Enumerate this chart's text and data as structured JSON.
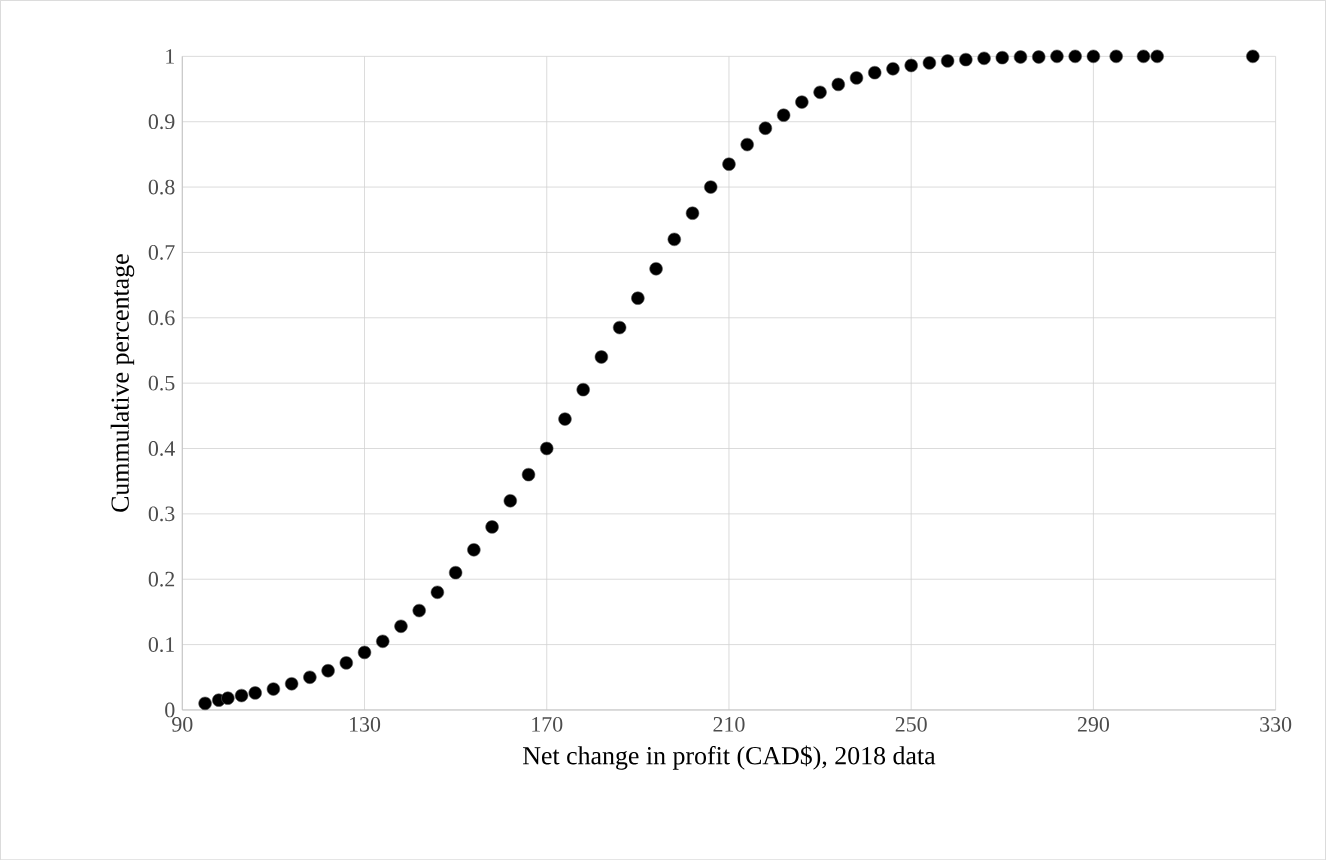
{
  "chart_data": {
    "type": "scatter",
    "xlabel": "Net change in profit (CAD$), 2018 data",
    "ylabel": "Cummulative percentage",
    "xlim": [
      90,
      330
    ],
    "xticks": [
      90,
      130,
      170,
      210,
      250,
      290,
      330
    ],
    "ylim": [
      0,
      1
    ],
    "yticks": [
      0,
      0.1,
      0.2,
      0.3,
      0.4,
      0.5,
      0.6,
      0.7,
      0.8,
      0.9,
      1
    ],
    "grid": true,
    "marker": "circle",
    "series": [
      {
        "color": "#000000",
        "x": [
          95,
          98,
          100,
          103,
          106,
          110,
          114,
          118,
          122,
          126,
          130,
          134,
          138,
          142,
          146,
          150,
          154,
          158,
          162,
          166,
          170,
          174,
          178,
          182,
          186,
          190,
          194,
          198,
          202,
          206,
          210,
          214,
          218,
          222,
          226,
          230,
          234,
          238,
          242,
          246,
          250,
          254,
          258,
          262,
          266,
          270,
          274,
          278,
          282,
          286,
          290,
          295,
          301,
          304,
          325
        ],
        "values": [
          0.01,
          0.015,
          0.018,
          0.022,
          0.026,
          0.032,
          0.04,
          0.05,
          0.06,
          0.072,
          0.088,
          0.105,
          0.128,
          0.152,
          0.18,
          0.21,
          0.245,
          0.28,
          0.32,
          0.36,
          0.4,
          0.445,
          0.49,
          0.54,
          0.585,
          0.63,
          0.675,
          0.72,
          0.76,
          0.8,
          0.835,
          0.865,
          0.89,
          0.91,
          0.93,
          0.945,
          0.957,
          0.967,
          0.975,
          0.981,
          0.986,
          0.99,
          0.993,
          0.995,
          0.997,
          0.998,
          0.999,
          0.999,
          1,
          1,
          1,
          1,
          1,
          1,
          1
        ]
      }
    ]
  }
}
